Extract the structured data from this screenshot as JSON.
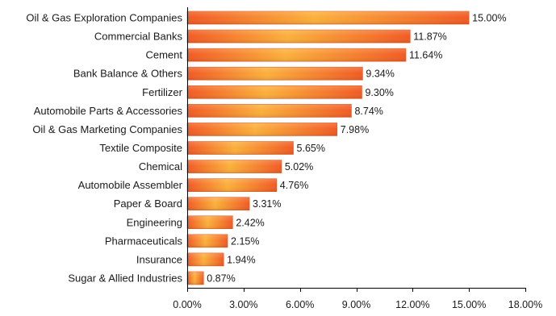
{
  "chart_data": {
    "type": "bar",
    "orientation": "horizontal",
    "categories": [
      "Oil & Gas Exploration Companies",
      "Commercial Banks",
      "Cement",
      "Bank Balance & Others",
      "Fertilizer",
      "Automobile Parts & Accessories",
      "Oil & Gas Marketing Companies",
      "Textile Composite",
      "Chemical",
      "Automobile Assembler",
      "Paper & Board",
      "Engineering",
      "Pharmaceuticals",
      "Insurance",
      "Sugar & Allied Industries"
    ],
    "values": [
      15.0,
      11.87,
      11.64,
      9.34,
      9.3,
      8.74,
      7.98,
      5.65,
      5.02,
      4.76,
      3.31,
      2.42,
      2.15,
      1.94,
      0.87
    ],
    "value_labels": [
      "15.00%",
      "11.87%",
      "11.64%",
      "9.34%",
      "9.30%",
      "8.74%",
      "7.98%",
      "5.65%",
      "5.02%",
      "4.76%",
      "3.31%",
      "2.42%",
      "2.15%",
      "1.94%",
      "0.87%"
    ],
    "xlim": [
      0,
      18
    ],
    "x_ticks": [
      0,
      3,
      6,
      9,
      12,
      15,
      18
    ],
    "x_tick_labels": [
      "0.00%",
      "3.00%",
      "6.00%",
      "9.00%",
      "12.00%",
      "15.00%",
      "18.00%"
    ],
    "title": "",
    "xlabel": "",
    "ylabel": "",
    "grid": false,
    "legend": "none",
    "bar_color_light": "#fbb03b",
    "bar_color_mid": "#f7941d",
    "bar_color_dark": "#f15a24",
    "bar_edge_color": "#e2561c"
  }
}
